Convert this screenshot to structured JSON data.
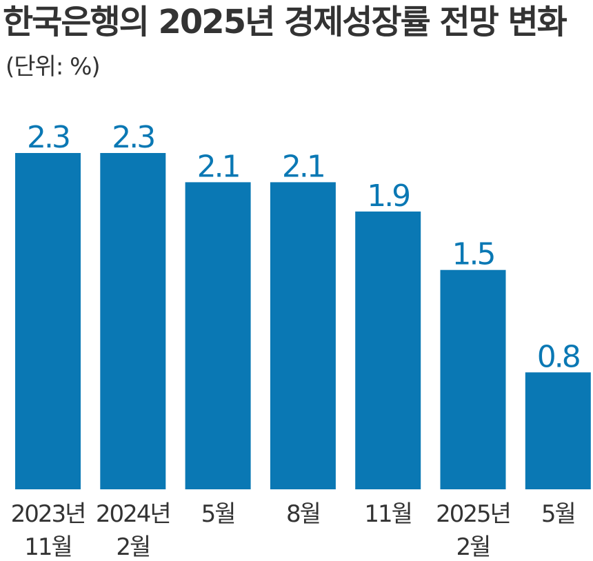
{
  "header": {
    "title": "한국은행의 2025년 경제성장률 전망 변화",
    "unit": "(단위: %)"
  },
  "colors": {
    "bar": "#0a78b4",
    "text": "#333333"
  },
  "chart_data": {
    "type": "bar",
    "title": "한국은행의 2025년 경제성장률 전망 변화",
    "unit": "(단위: %)",
    "categories": [
      [
        "2023년",
        "11월"
      ],
      [
        "2024년",
        "2월"
      ],
      [
        "5월"
      ],
      [
        "8월"
      ],
      [
        "11월"
      ],
      [
        "2025년",
        "2월"
      ],
      [
        "5월"
      ]
    ],
    "values": [
      2.3,
      2.3,
      2.1,
      2.1,
      1.9,
      1.5,
      0.8
    ],
    "value_labels": [
      "2.3",
      "2.3",
      "2.1",
      "2.1",
      "1.9",
      "1.5",
      "0.8"
    ],
    "ylim": [
      0,
      2.3
    ],
    "grid": false,
    "legend": "none"
  }
}
